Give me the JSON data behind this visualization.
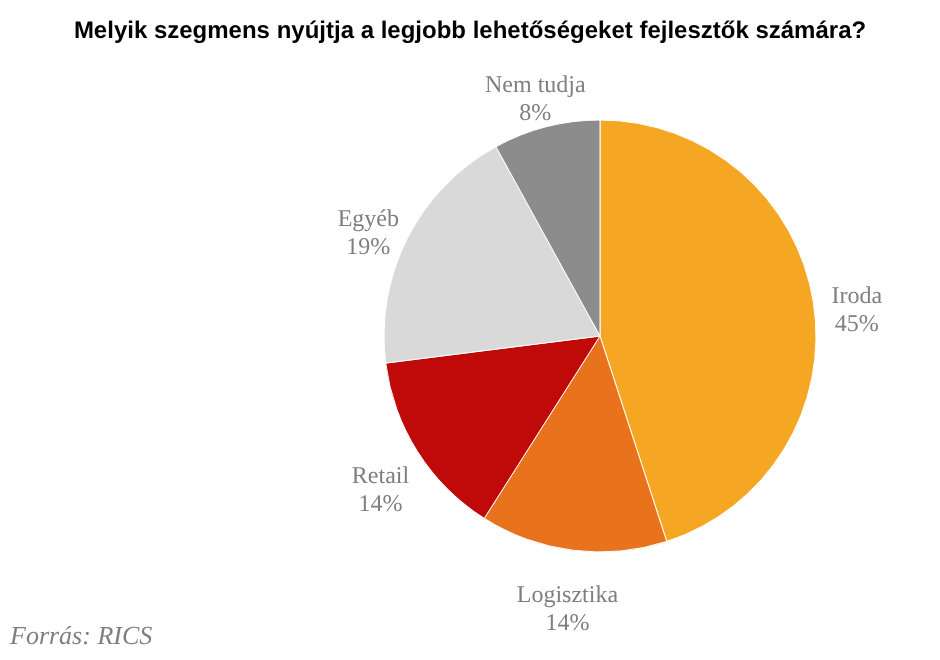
{
  "chart_data": {
    "type": "pie",
    "title": "Melyik szegmens nyújtja a legjobb lehetőségeket fejlesztők számára?",
    "categories": [
      "Iroda",
      "Logisztika",
      "Retail",
      "Egyéb",
      "Nem tudja"
    ],
    "values": [
      45,
      14,
      14,
      19,
      8
    ],
    "colors": [
      "#f5a623",
      "#e8731c",
      "#c00a0a",
      "#d9d9d9",
      "#8c8c8c"
    ],
    "value_labels": [
      "45%",
      "14%",
      "14%",
      "19%",
      "8%"
    ],
    "legend": false,
    "annotations": [
      "Forrás: RICS"
    ]
  }
}
